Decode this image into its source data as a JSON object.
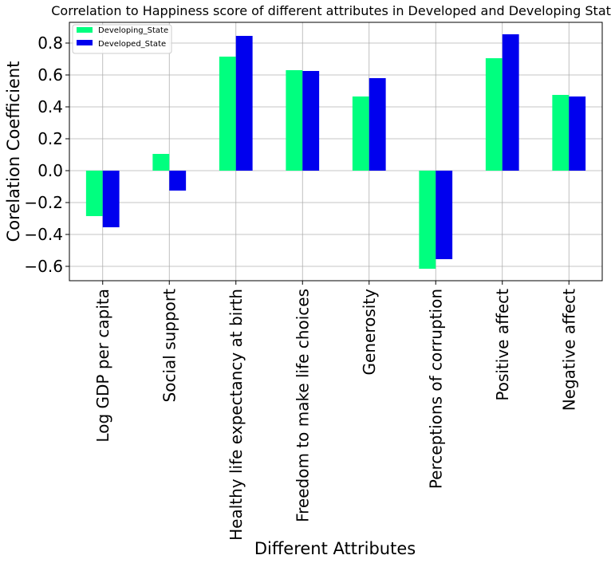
{
  "chart_data": {
    "type": "bar",
    "title": "Correlation to Happiness score of different attributes in Developed and Developing State",
    "xlabel": "Different Attributes",
    "ylabel": "Corelation Coefficient",
    "categories": [
      "Log GDP per capita",
      "Social support",
      "Healthy life expectancy at birth",
      "Freedom to make life choices",
      "Generosity",
      "Perceptions of corruption",
      "Positive affect",
      "Negative affect"
    ],
    "series": [
      {
        "name": "Developing_State",
        "color": "#00ff7f",
        "values": [
          -0.285,
          0.105,
          0.715,
          0.63,
          0.465,
          -0.615,
          0.705,
          0.475
        ]
      },
      {
        "name": "Developed_State",
        "color": "#0000ee",
        "values": [
          -0.355,
          -0.125,
          0.845,
          0.625,
          0.58,
          -0.555,
          0.855,
          0.465
        ]
      }
    ],
    "ylim": [
      -0.69,
      0.93
    ],
    "yticks": [
      -0.6,
      -0.4,
      -0.2,
      0.0,
      0.2,
      0.4,
      0.6,
      0.8
    ],
    "ytick_labels": [
      "−0.6",
      "−0.4",
      "−0.2",
      "0.0",
      "0.2",
      "0.4",
      "0.6",
      "0.8"
    ],
    "grid": true,
    "legend": "top-left"
  }
}
